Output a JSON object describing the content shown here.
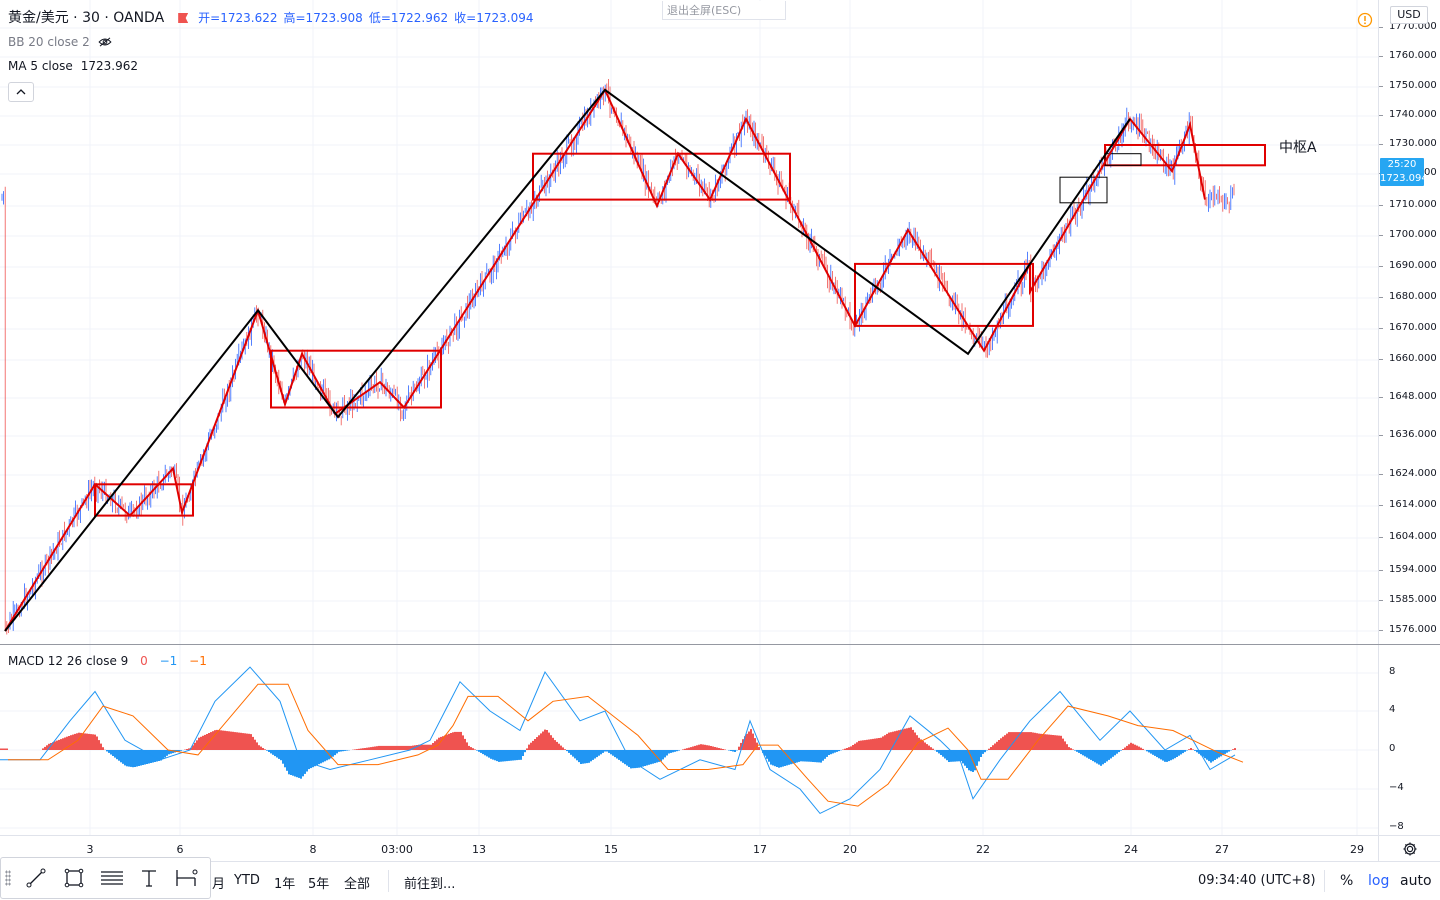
{
  "legend": {
    "symbol": "黄金/美元 · 30 · OANDA",
    "open": "开=1723.622",
    "high": "高=1723.908",
    "low": "低=1722.962",
    "close": "收=1723.094",
    "bb_label": "BB 20 close 2",
    "ma_label": "MA 5 close",
    "ma_value": "1723.962"
  },
  "esc_hint": "退出全屏(ESC)",
  "zone_label": "中枢A",
  "price_scale": {
    "currency": "USD",
    "ticks": [
      "1770.000",
      "1760.000",
      "1750.000",
      "1740.000",
      "1730.000",
      "1720.000",
      "1710.000",
      "1700.000",
      "1690.000",
      "1680.000",
      "1670.000",
      "1660.000",
      "1648.000",
      "1636.000",
      "1624.000",
      "1614.000",
      "1604.000",
      "1594.000",
      "1585.000",
      "1576.000"
    ],
    "countdown": "25:20",
    "last_price": "1723.094"
  },
  "macd": {
    "label": "MACD 12 26 close 9",
    "v1": "0",
    "v2": "−1",
    "v3": "−1",
    "ticks": [
      "8",
      "4",
      "0",
      "−4",
      "−8"
    ]
  },
  "time_axis": [
    "3",
    "6",
    "8",
    "03:00",
    "13",
    "15",
    "17",
    "20",
    "22",
    "24",
    "27",
    "29"
  ],
  "bottom_bar": {
    "ranges": [
      "月",
      "YTD",
      "1年",
      "5年",
      "全部"
    ],
    "goto": "前往到...",
    "clock": "09:34:40 (UTC+8)",
    "percent": "%",
    "log": "log",
    "auto": "auto"
  },
  "colors": {
    "up": "#2962ff",
    "down": "#ef5350",
    "macd_line": "#2196f3",
    "signal_line": "#ff6d00",
    "hist_pos": "#ef5350",
    "hist_neg": "#2196f3",
    "stroke_red": "#e00000",
    "stroke_black": "#000000"
  },
  "icons": [
    "eye-off-icon",
    "chevron-up-icon",
    "alert-icon",
    "trend-line-icon",
    "rectangle-icon",
    "fib-icon",
    "text-icon",
    "measure-icon",
    "gear-icon"
  ],
  "chart_data": {
    "type": "candlestick",
    "symbol": "XAU/USD",
    "timeframe": "30",
    "price_axis_log": true,
    "black_strokes": [
      [
        "3 early",
        1576
      ],
      [
        "7",
        1676
      ],
      [
        "8",
        1642
      ],
      [
        "15",
        1749
      ],
      [
        "21",
        1662
      ],
      [
        "24",
        1739
      ]
    ],
    "red_strokes": [
      [
        "2",
        1576
      ],
      [
        "3",
        1621
      ],
      [
        "3",
        1611
      ],
      [
        "5",
        1626
      ],
      [
        "5",
        1612
      ],
      [
        "7",
        1676
      ],
      [
        "7",
        1646
      ],
      [
        "8",
        1662
      ],
      [
        "8",
        1643
      ],
      [
        "9",
        1653
      ],
      [
        "11",
        1645
      ],
      [
        "13",
        1663
      ],
      [
        "15",
        1749
      ],
      [
        "16",
        1710
      ],
      [
        "16",
        1727
      ],
      [
        "17",
        1712
      ],
      [
        "17",
        1739
      ],
      [
        "19",
        1671
      ],
      [
        "20",
        1702
      ],
      [
        "21",
        1671
      ],
      [
        "22",
        1663
      ],
      [
        "23",
        1691
      ],
      [
        "23",
        1682
      ],
      [
        "24",
        1739
      ],
      [
        "25",
        1721
      ],
      [
        "26",
        1737
      ],
      [
        "26",
        1712
      ]
    ],
    "zones": [
      {
        "from": "3",
        "to": "5",
        "low": 1611,
        "high": 1621
      },
      {
        "from": "7",
        "to": "11",
        "low": 1645,
        "high": 1663
      },
      {
        "from": "14",
        "to": "18",
        "low": 1712,
        "high": 1727
      },
      {
        "from": "20",
        "to": "23",
        "low": 1671,
        "high": 1691
      },
      {
        "from": "24",
        "to": "27",
        "low": 1723,
        "high": 1730,
        "label": "中枢A"
      }
    ],
    "macd_range": [
      -8,
      8
    ]
  }
}
